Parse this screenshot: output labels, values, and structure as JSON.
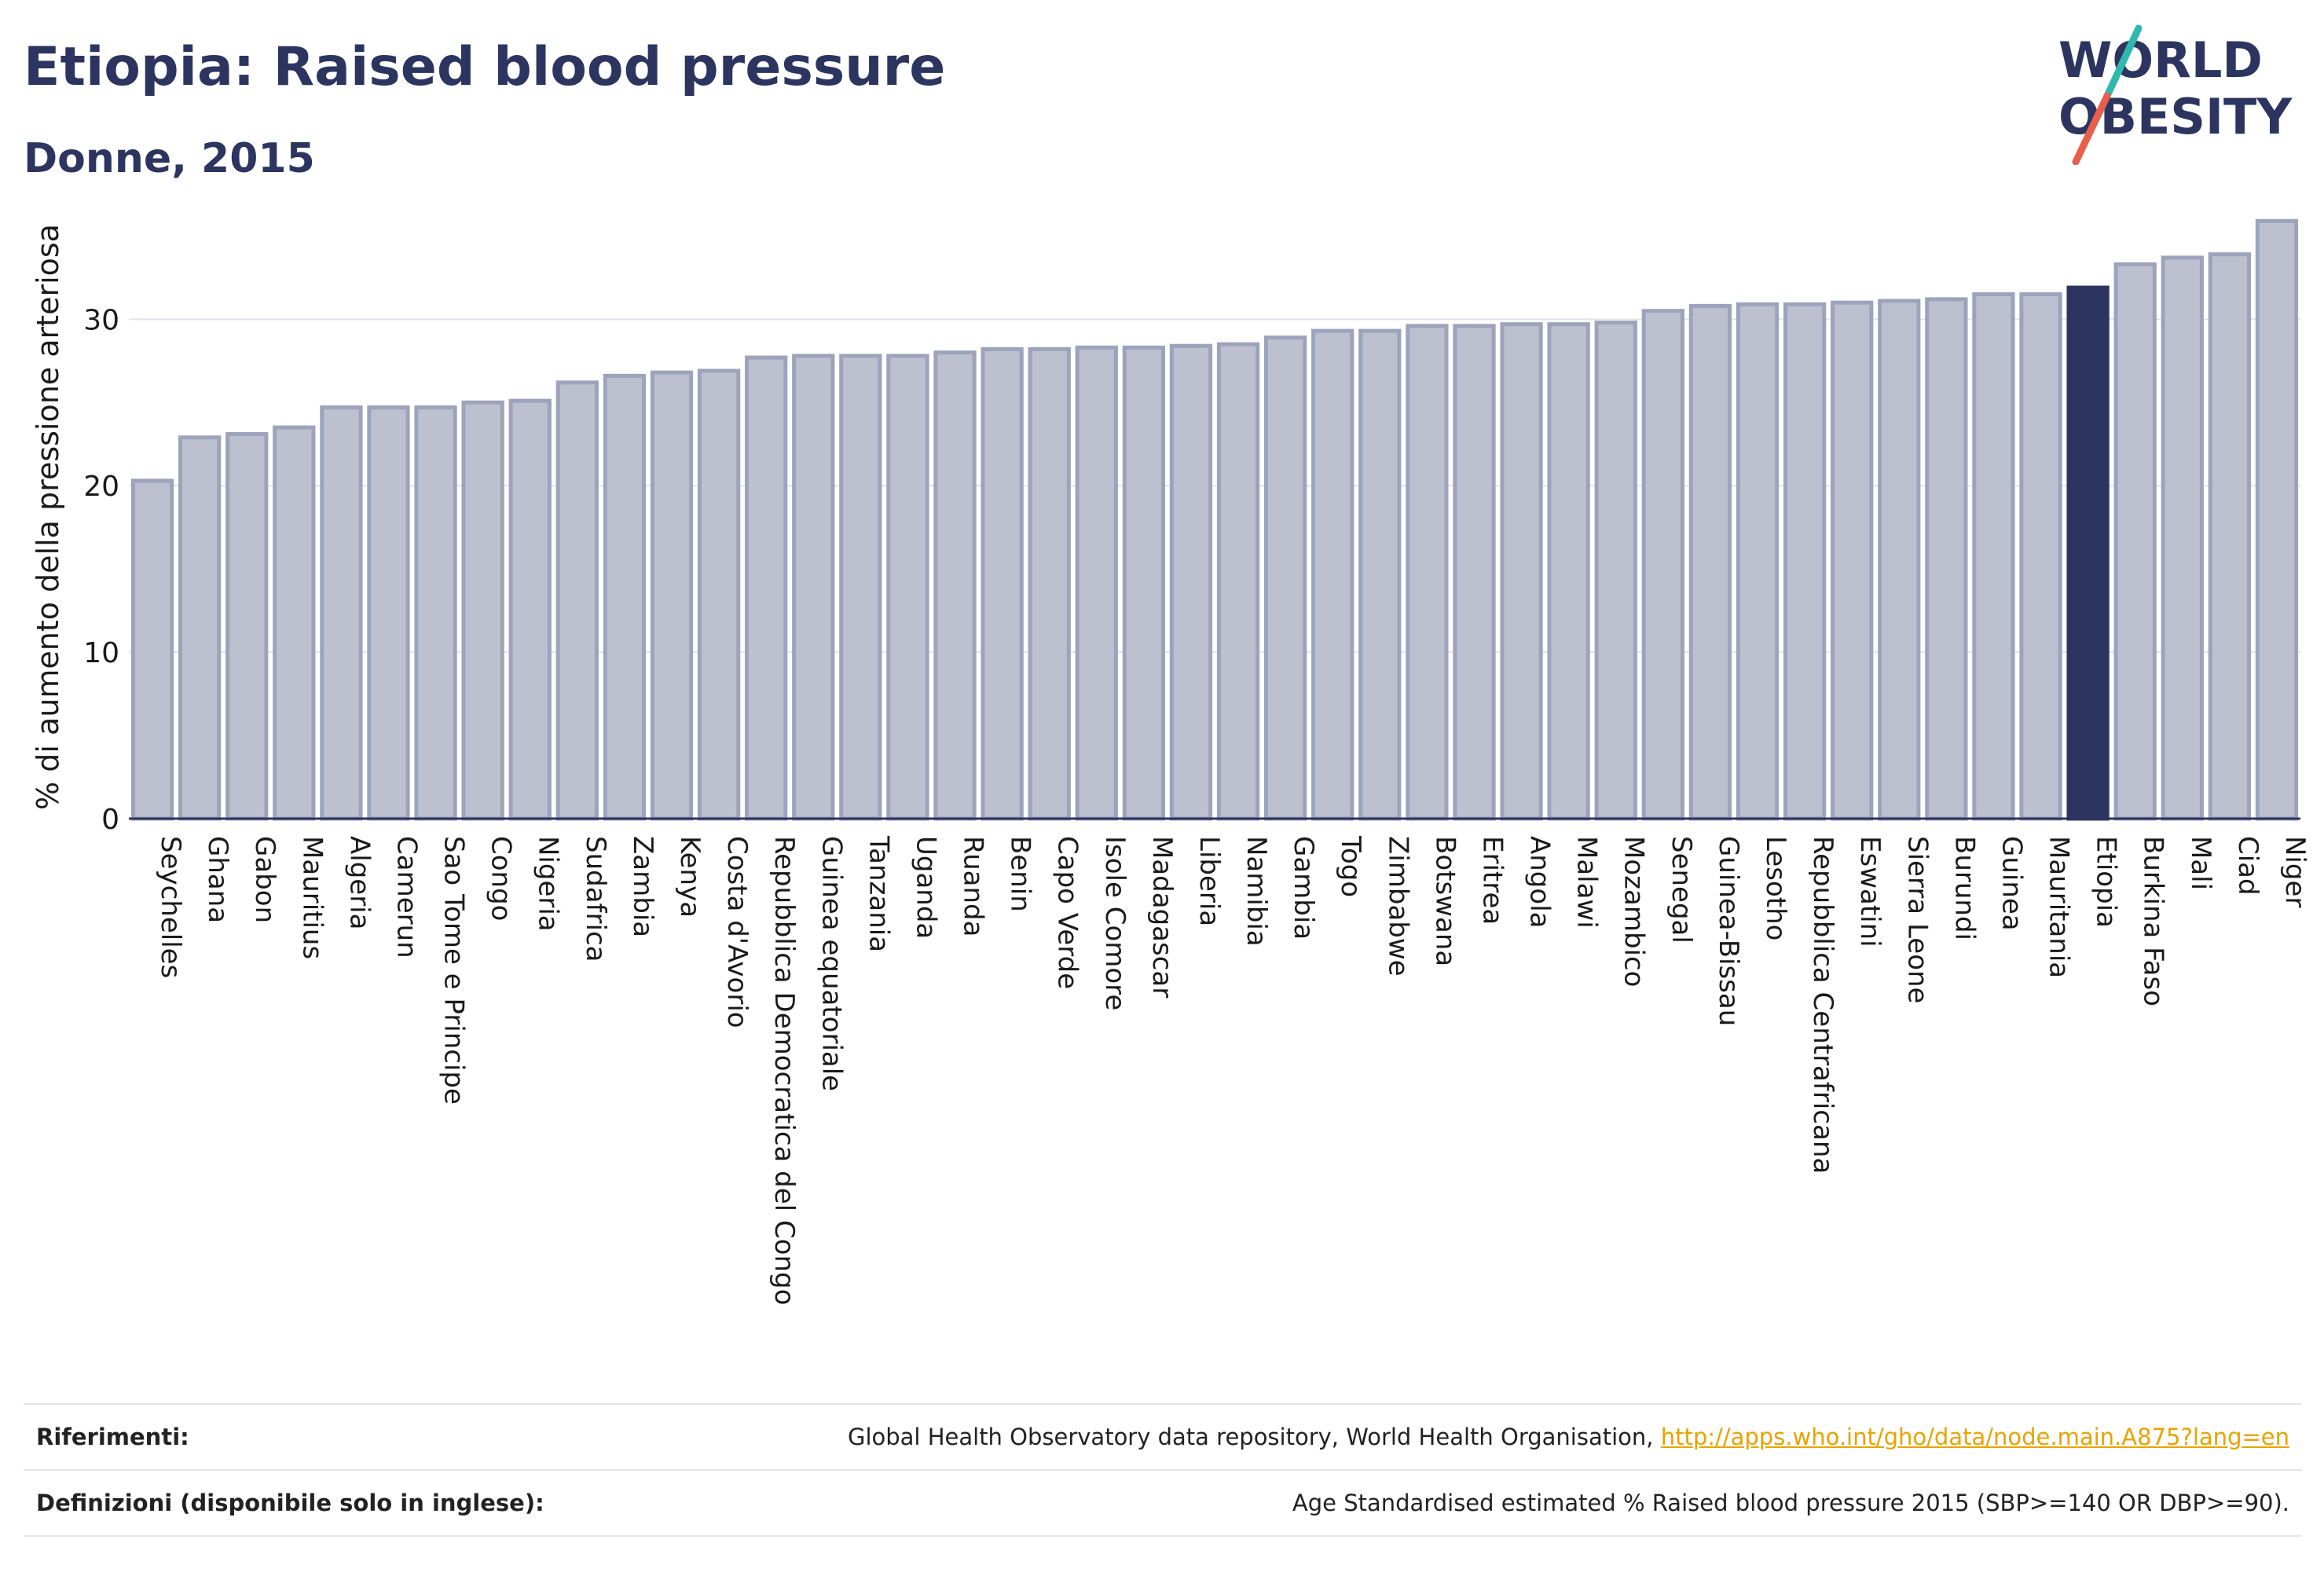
{
  "header": {
    "title": "Etiopia: Raised blood pressure",
    "subtitle": "Donne, 2015"
  },
  "logo": {
    "line1": "WORLD",
    "line2": "OBESITY",
    "colors": {
      "text": "#2c3560",
      "slash_top": "#2fb8b0",
      "slash_bottom": "#e8604c"
    }
  },
  "chart_data": {
    "type": "bar",
    "ylabel": "% di aumento della pressione arteriosa",
    "ylim": [
      0,
      37
    ],
    "yticks": [
      0,
      10,
      20,
      30
    ],
    "grid": true,
    "highlight": "Etiopia",
    "colors": {
      "bar": "#bcc0cf",
      "bar_edge": "#9da3bb",
      "highlight": "#2c3560",
      "grid": "#e4e5ea",
      "axis": "#2c3560"
    },
    "categories": [
      "Seychelles",
      "Ghana",
      "Gabon",
      "Mauritius",
      "Algeria",
      "Camerun",
      "Sao Tome e Principe",
      "Congo",
      "Nigeria",
      "Sudafrica",
      "Zambia",
      "Kenya",
      "Costa d'Avorio",
      "Repubblica Democratica del Congo",
      "Guinea equatoriale",
      "Tanzania",
      "Uganda",
      "Ruanda",
      "Benin",
      "Capo Verde",
      "Isole Comore",
      "Madagascar",
      "Liberia",
      "Namibia",
      "Gambia",
      "Togo",
      "Zimbabwe",
      "Botswana",
      "Eritrea",
      "Angola",
      "Malawi",
      "Mozambico",
      "Senegal",
      "Guinea-Bissau",
      "Lesotho",
      "Repubblica Centrafricana",
      "Eswatini",
      "Sierra Leone",
      "Burundi",
      "Guinea",
      "Mauritania",
      "Etiopia",
      "Burkina Faso",
      "Mali",
      "Ciad",
      "Niger"
    ],
    "values": [
      20.3,
      22.9,
      23.1,
      23.5,
      24.7,
      24.7,
      24.7,
      25.0,
      25.1,
      26.2,
      26.6,
      26.8,
      26.9,
      27.7,
      27.8,
      27.8,
      27.8,
      28.0,
      28.2,
      28.2,
      28.3,
      28.3,
      28.4,
      28.5,
      28.9,
      29.3,
      29.3,
      29.6,
      29.6,
      29.7,
      29.7,
      29.8,
      30.5,
      30.8,
      30.9,
      30.9,
      31.0,
      31.1,
      31.2,
      31.5,
      31.5,
      31.9,
      33.3,
      33.7,
      33.9,
      35.9
    ]
  },
  "references": {
    "refs_label": "Riferimenti:",
    "refs_text": "Global Health Observatory data repository, World Health Organisation, ",
    "refs_link": "http://apps.who.int/gho/data/node.main.A875?lang=en",
    "defs_label": "Definizioni (disponibile solo in inglese):",
    "defs_text": "Age Standardised estimated % Raised blood pressure 2015 (SBP>=140 OR DBP>=90)."
  }
}
